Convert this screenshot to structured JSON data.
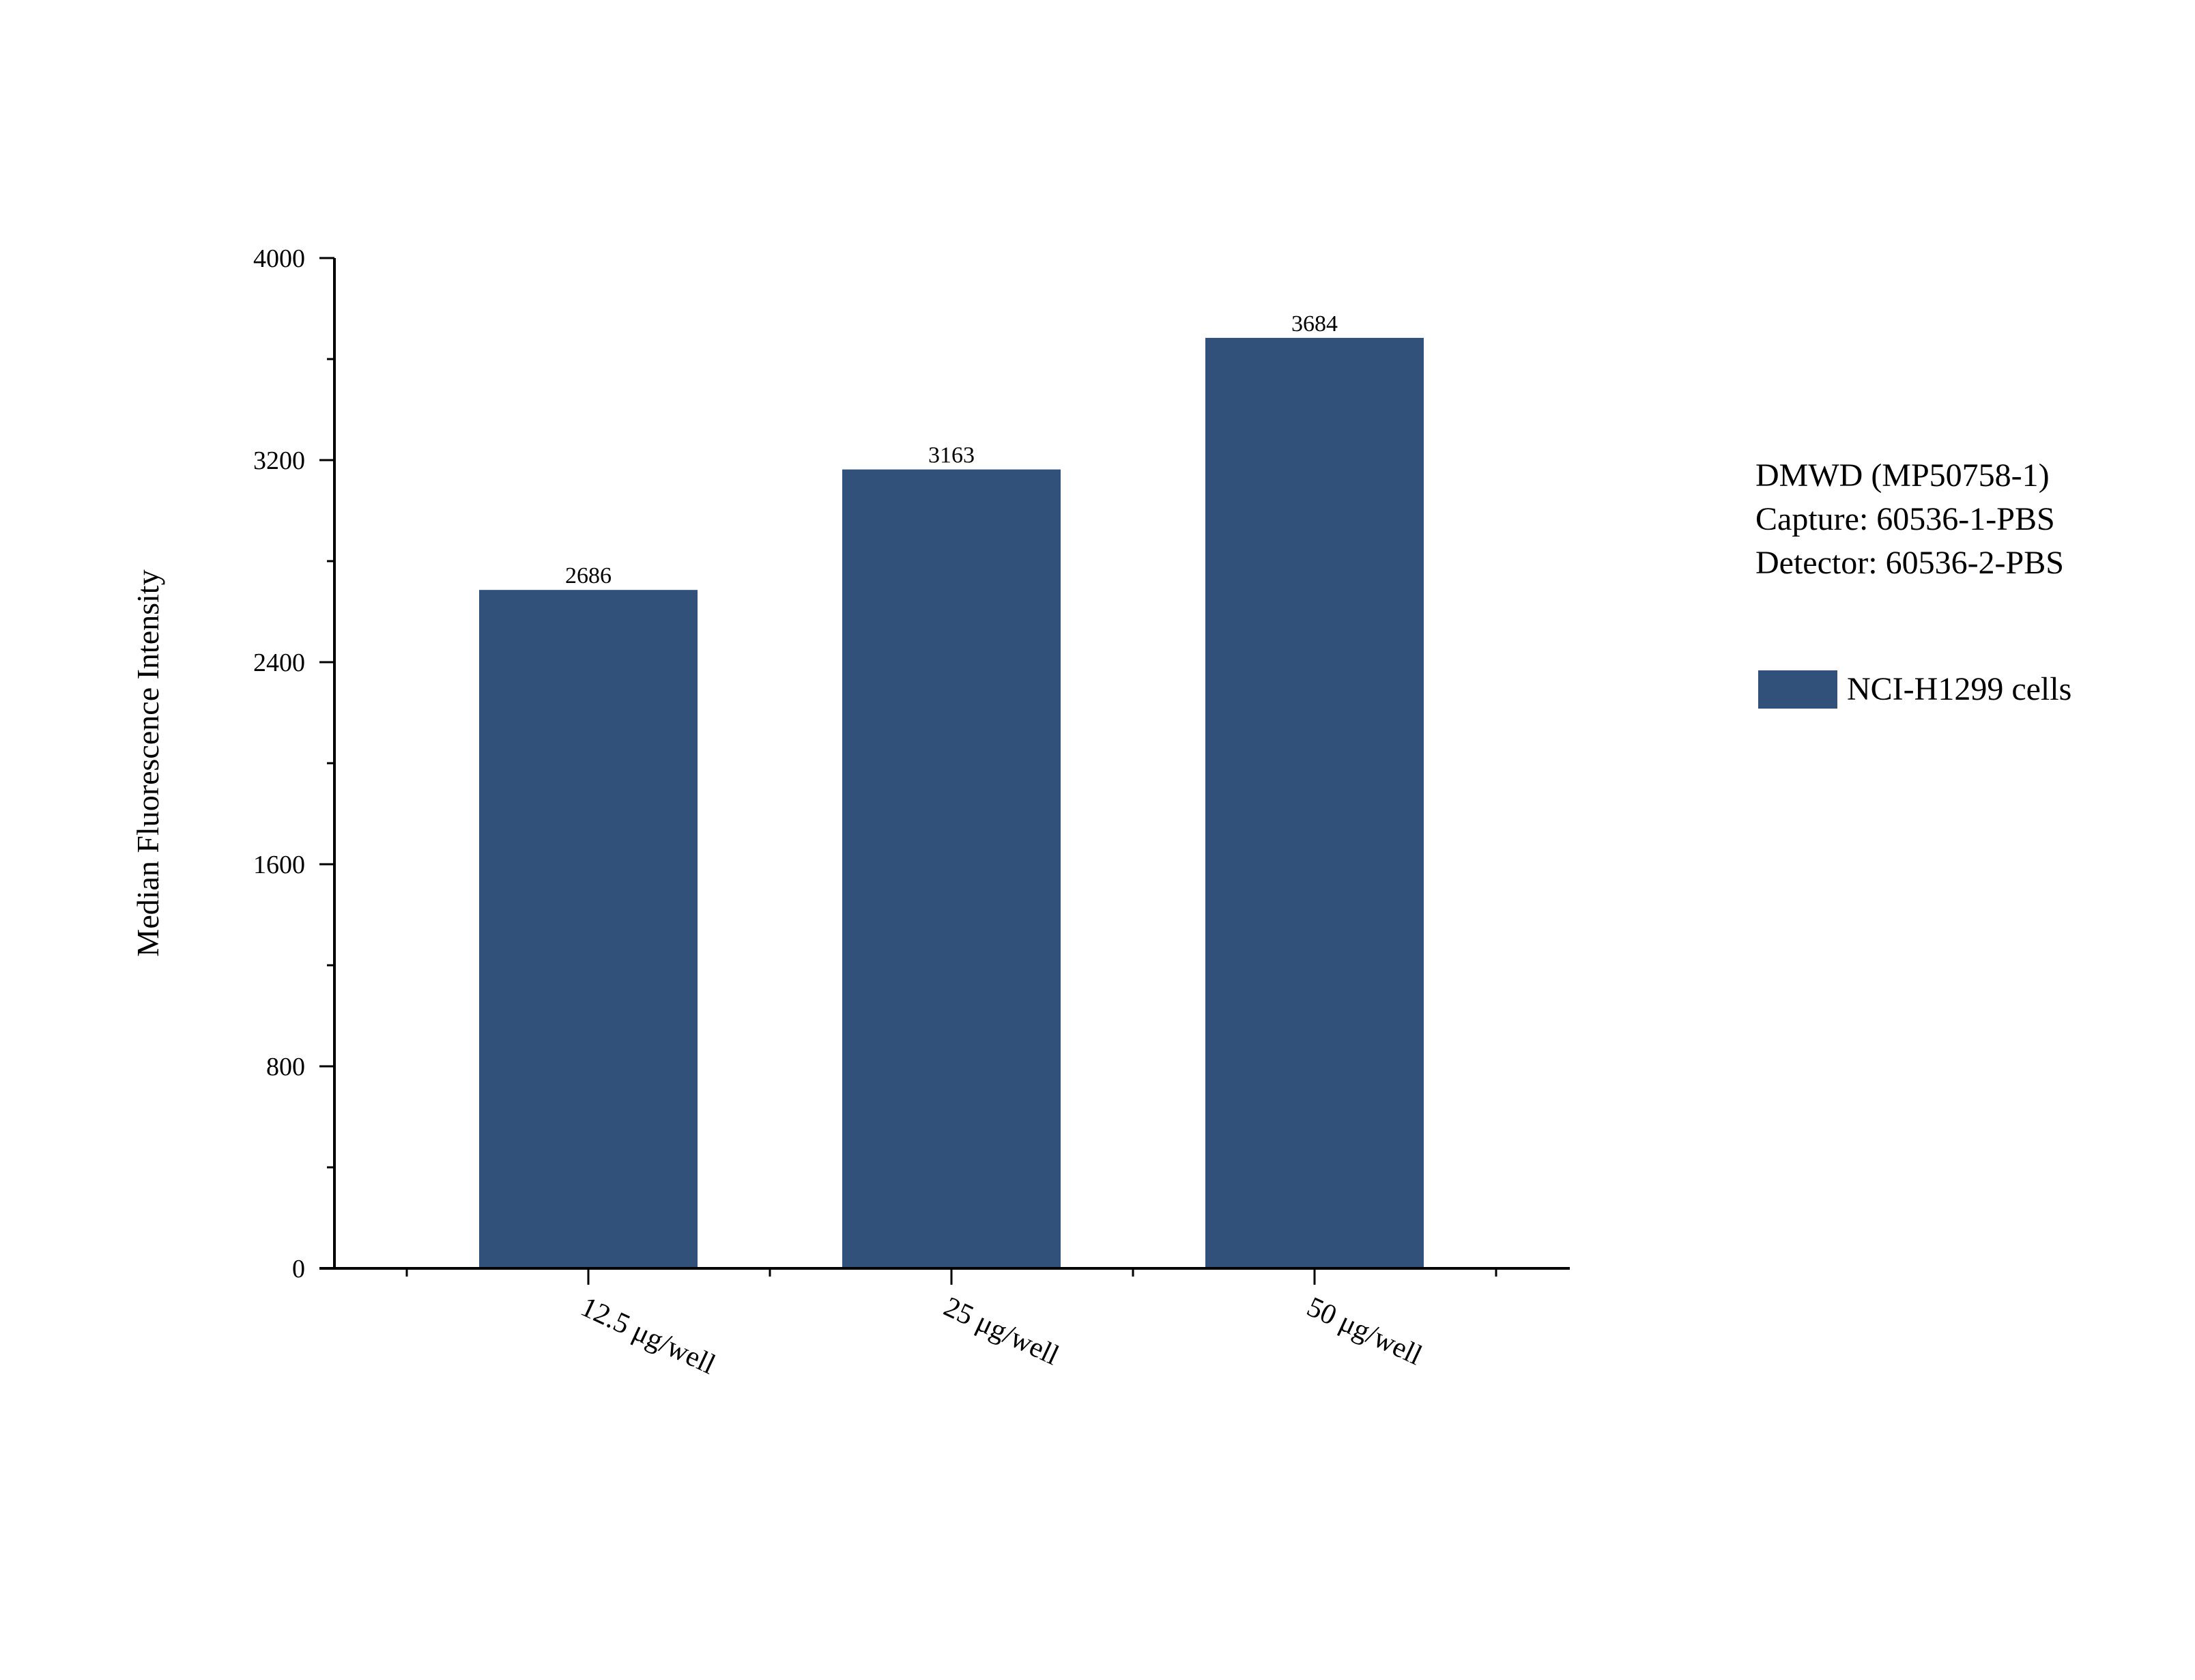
{
  "chart_data": {
    "type": "bar",
    "title": "",
    "xlabel": "",
    "ylabel": "Median Fluorescence Intensity",
    "categories": [
      "12.5 μg/well",
      "25 μg/well",
      "50 μg/well"
    ],
    "series": [
      {
        "name": "NCI-H1299 cells",
        "values": [
          2686,
          3163,
          3684
        ],
        "color": "#31507a"
      }
    ],
    "data_labels": [
      "2686",
      "3163",
      "3684"
    ],
    "ylim": [
      0,
      4000
    ],
    "yticks": [
      0,
      800,
      1600,
      2400,
      3200,
      4000
    ],
    "ytick_labels": [
      "0",
      "800",
      "1600",
      "2400",
      "3200",
      "4000"
    ],
    "y_minor_ticks": [
      400,
      1200,
      2000,
      2800,
      3600
    ],
    "grid": false,
    "legend_position": "right"
  },
  "annotation": {
    "lines": [
      "DMWD (MP50758-1)",
      "Capture: 60536-1-PBS",
      "Detector: 60536-2-PBS"
    ]
  },
  "legend": {
    "label": "NCI-H1299 cells",
    "color": "#31507a"
  }
}
